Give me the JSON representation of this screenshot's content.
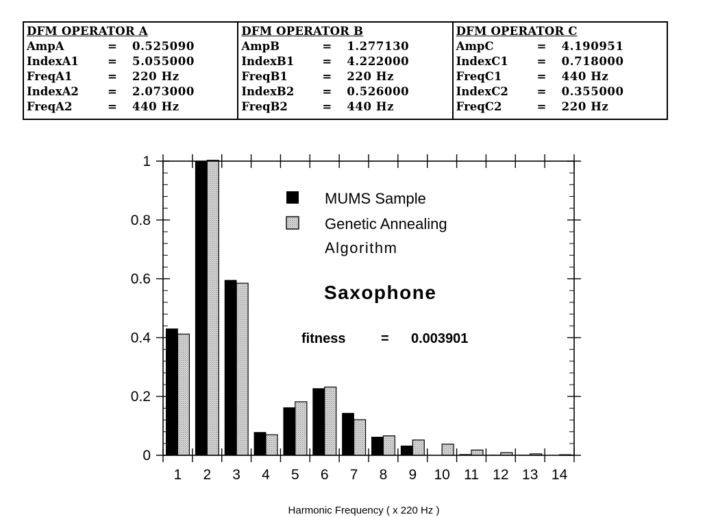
{
  "operators": [
    {
      "title": "DFM OPERATOR A",
      "params": [
        {
          "name": "AmpA",
          "value": "0.525090"
        },
        {
          "name": "IndexA1",
          "value": "5.055000"
        },
        {
          "name": "FreqA1",
          "value": "220 Hz"
        },
        {
          "name": "IndexA2",
          "value": "2.073000"
        },
        {
          "name": "FreqA2",
          "value": "440 Hz"
        }
      ]
    },
    {
      "title": "DFM OPERATOR B",
      "params": [
        {
          "name": "AmpB",
          "value": "1.277130"
        },
        {
          "name": "IndexB1",
          "value": "4.222000"
        },
        {
          "name": "FreqB1",
          "value": "220 Hz"
        },
        {
          "name": "IndexB2",
          "value": "0.526000"
        },
        {
          "name": "FreqB2",
          "value": "440 Hz"
        }
      ]
    },
    {
      "title": "DFM OPERATOR C",
      "params": [
        {
          "name": "AmpC",
          "value": "4.190951"
        },
        {
          "name": "IndexC1",
          "value": "0.718000"
        },
        {
          "name": "FreqC1",
          "value": "440 Hz"
        },
        {
          "name": "IndexC2",
          "value": "0.355000"
        },
        {
          "name": "FreqC2",
          "value": "220 Hz"
        }
      ]
    }
  ],
  "equals_sign": "=",
  "chart_data": {
    "type": "bar",
    "categories": [
      "1",
      "2",
      "3",
      "4",
      "5",
      "6",
      "7",
      "8",
      "9",
      "10",
      "11",
      "12",
      "13",
      "14"
    ],
    "series": [
      {
        "name": "MUMS Sample",
        "color": "#000000",
        "pattern": "solid",
        "values": [
          0.43,
          1.0,
          0.595,
          0.078,
          0.162,
          0.227,
          0.143,
          0.062,
          0.032,
          0.0,
          0.003,
          0.001,
          0.001,
          0.0
        ]
      },
      {
        "name": "Genetic Annealing Algorithm",
        "color": "#cfcfcf",
        "pattern": "stippled",
        "values": [
          0.412,
          1.003,
          0.585,
          0.07,
          0.182,
          0.232,
          0.121,
          0.066,
          0.052,
          0.038,
          0.018,
          0.009,
          0.005,
          0.002
        ]
      }
    ],
    "xlabel": "Harmonic Frequency ( x 220 Hz )",
    "ylabel": "",
    "ylim": [
      0,
      1
    ],
    "yticks": [
      "0",
      "0.2",
      "0.4",
      "0.6",
      "0.8",
      "1"
    ],
    "legend": {
      "placement": "top-right",
      "entries": [
        "MUMS Sample",
        "Genetic Annealing",
        "Algorithm"
      ]
    },
    "annotations": {
      "instrument": "Saxophone",
      "fitness_label": "fitness",
      "fitness_eq": "=",
      "fitness_value": "0.003901"
    },
    "grid": false
  }
}
